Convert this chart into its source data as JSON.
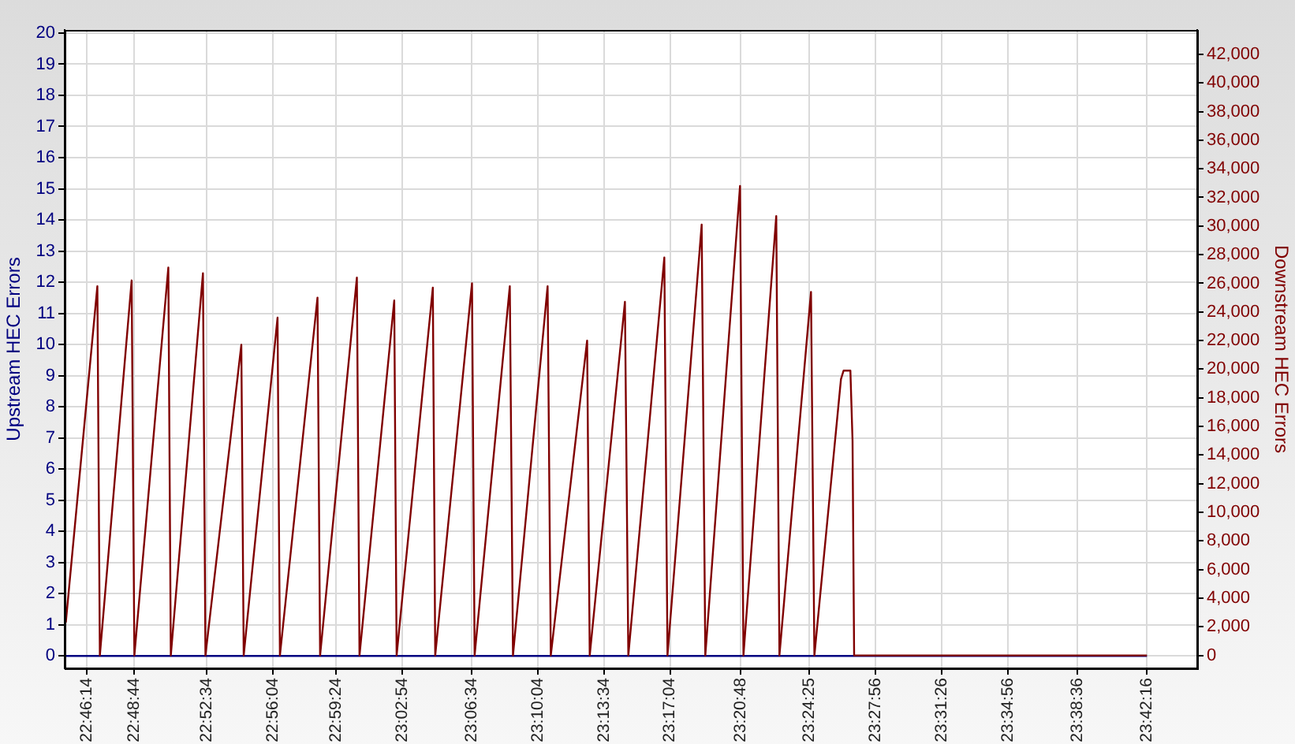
{
  "chart_data": {
    "type": "line",
    "ylabel": "Upstream HEC Errors",
    "y2label": "Downstream HEC Errors",
    "xlim": [
      22.7511,
      23.7487
    ],
    "xticks": [
      {
        "value": 22.7706,
        "label": "22:46:14"
      },
      {
        "value": 22.8122,
        "label": "22:48:44"
      },
      {
        "value": 22.8761,
        "label": "22:52:34"
      },
      {
        "value": 22.9344,
        "label": "22:56:04"
      },
      {
        "value": 22.99,
        "label": "22:59:24"
      },
      {
        "value": 23.0483,
        "label": "23:02:54"
      },
      {
        "value": 23.1094,
        "label": "23:06:34"
      },
      {
        "value": 23.1678,
        "label": "23:10:04"
      },
      {
        "value": 23.2261,
        "label": "23:13:34"
      },
      {
        "value": 23.2844,
        "label": "23:17:04"
      },
      {
        "value": 23.3467,
        "label": "23:20:48"
      },
      {
        "value": 23.4069,
        "label": "23:24:25"
      },
      {
        "value": 23.4656,
        "label": "23:27:56"
      },
      {
        "value": 23.5239,
        "label": "23:31:26"
      },
      {
        "value": 23.5822,
        "label": "23:34:56"
      },
      {
        "value": 23.6433,
        "label": "23:38:36"
      },
      {
        "value": 23.7044,
        "label": "23:42:16"
      }
    ],
    "ylim": [
      -0.4,
      20.1
    ],
    "yticks": [
      0,
      1,
      2,
      3,
      4,
      5,
      6,
      7,
      8,
      9,
      10,
      11,
      12,
      13,
      14,
      15,
      16,
      17,
      18,
      19,
      20
    ],
    "y2lim": [
      -900,
      43700
    ],
    "y2ticks": [
      0,
      {
        "value": 2000,
        "label": "2,000"
      },
      {
        "value": 4000,
        "label": "4,000"
      },
      {
        "value": 6000,
        "label": "6,000"
      },
      {
        "value": 8000,
        "label": "8,000"
      },
      {
        "value": 10000,
        "label": "10,000"
      },
      {
        "value": 12000,
        "label": "12,000"
      },
      {
        "value": 14000,
        "label": "14,000"
      },
      {
        "value": 16000,
        "label": "16,000"
      },
      {
        "value": 18000,
        "label": "18,000"
      },
      {
        "value": 20000,
        "label": "20,000"
      },
      {
        "value": 22000,
        "label": "22,000"
      },
      {
        "value": 24000,
        "label": "24,000"
      },
      {
        "value": 26000,
        "label": "26,000"
      },
      {
        "value": 28000,
        "label": "28,000"
      },
      {
        "value": 30000,
        "label": "30,000"
      },
      {
        "value": 32000,
        "label": "32,000"
      },
      {
        "value": 34000,
        "label": "34,000"
      },
      {
        "value": 36000,
        "label": "36,000"
      },
      {
        "value": 38000,
        "label": "38,000"
      },
      {
        "value": 40000,
        "label": "40,000"
      },
      {
        "value": 42000,
        "label": "42,000"
      }
    ],
    "grid": true,
    "series": [
      {
        "color": "#000080",
        "x": [
          22.7521,
          23.7044
        ],
        "values": [
          0,
          0
        ]
      },
      {
        "color": "#800000",
        "axis": "y2",
        "x": [
          22.7521,
          22.7799,
          22.7821,
          22.8101,
          22.8125,
          22.8424,
          22.8446,
          22.8729,
          22.8751,
          22.9067,
          22.9088,
          22.9386,
          22.9407,
          22.9738,
          22.9761,
          23.0085,
          23.0108,
          23.0414,
          23.0435,
          23.0754,
          23.0775,
          23.1099,
          23.1122,
          23.1432,
          23.146,
          23.1765,
          23.1793,
          23.2113,
          23.2136,
          23.2446,
          23.2476,
          23.2793,
          23.2821,
          23.3122,
          23.3154,
          23.346,
          23.349,
          23.3779,
          23.3807,
          23.4085,
          23.4115,
          23.4349,
          23.4372,
          23.4432,
          23.4451,
          23.4465,
          23.7044
        ],
        "values": [
          2300,
          25800,
          0,
          26200,
          0,
          27100,
          0,
          26700,
          0,
          21700,
          0,
          23600,
          0,
          25000,
          0,
          26400,
          0,
          24800,
          0,
          25700,
          0,
          26000,
          0,
          25800,
          0,
          25800,
          0,
          22000,
          0,
          24700,
          0,
          27800,
          0,
          30100,
          0,
          32800,
          0,
          30700,
          0,
          25400,
          0,
          19300,
          19900,
          19900,
          15000,
          0,
          0
        ]
      }
    ]
  }
}
